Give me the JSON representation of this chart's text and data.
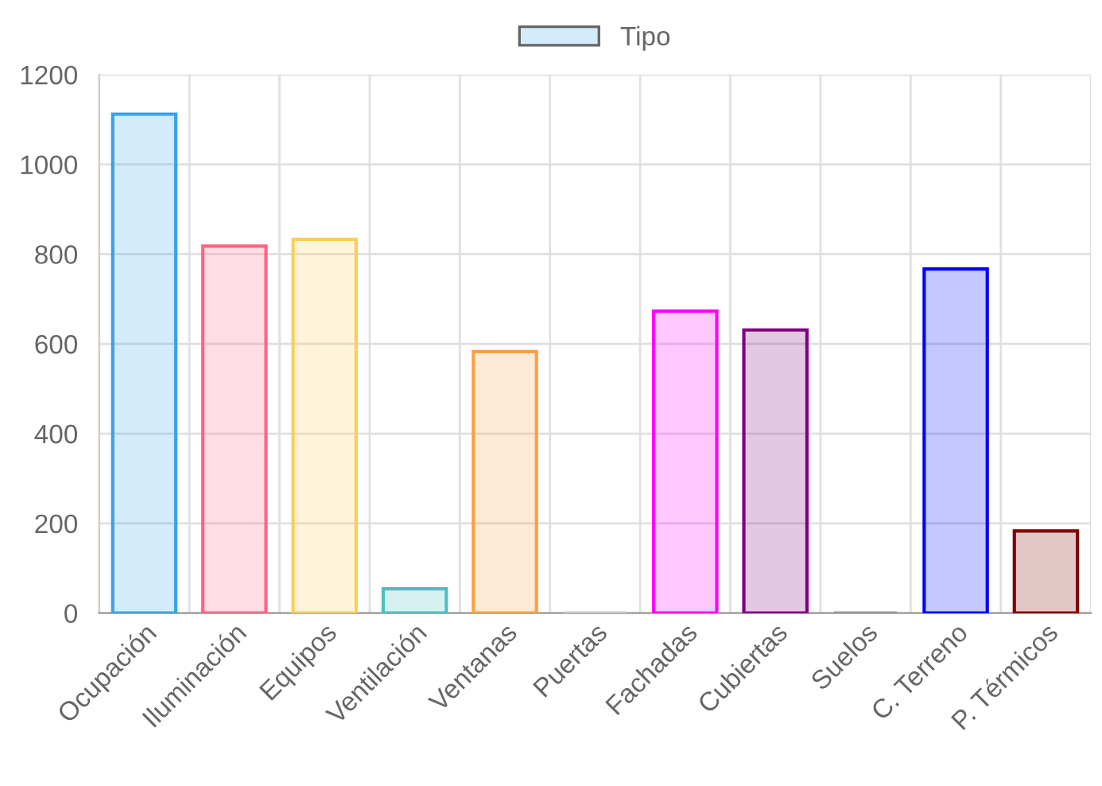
{
  "chart_data": {
    "type": "bar",
    "categories": [
      "Ocupación",
      "Iluminación",
      "Equipos",
      "Ventilación",
      "Ventanas",
      "Puertas",
      "Fachadas",
      "Cubiertas",
      "Suelos",
      "C. Terreno",
      "P. Térmicos"
    ],
    "series": [
      {
        "name": "Tipo",
        "colors": [
          "#36a2eb",
          "#ff6384",
          "#ffcd56",
          "#4bc0c0",
          "#ff9f40",
          "#c9cbcf",
          "#ff00ff",
          "#800080",
          "#999999",
          "#0000ff",
          "#800000"
        ],
        "values": [
          1112,
          818,
          833,
          54,
          583,
          0,
          673,
          631,
          0,
          767,
          183
        ]
      }
    ],
    "ylim": [
      0,
      1200
    ],
    "yticks": [
      0,
      200,
      400,
      600,
      800,
      1000,
      1200
    ],
    "grid": true,
    "legend": "top"
  }
}
